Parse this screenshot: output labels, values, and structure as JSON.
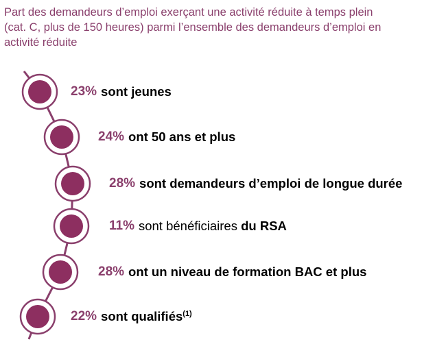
{
  "title": {
    "line1": "Part des demandeurs d’emploi exerçant une activité réduite à temps plein",
    "line2": "(cat. C, plus de 150 heures) parmi l’ensemble des demandeurs d’emploi en",
    "line3": "activité réduite"
  },
  "colors": {
    "accent": "#8a3f6c",
    "disc": "#8d2f60",
    "ring": "#ffffff",
    "line": "#8a3f6c"
  },
  "items": [
    {
      "pct": "23%",
      "text": "sont jeunes",
      "bold": true
    },
    {
      "pct": "24%",
      "text": "ont 50 ans et plus",
      "bold": true
    },
    {
      "pct": "28%",
      "text": "sont demandeurs d’emploi de longue durée",
      "bold": true
    },
    {
      "pct": "11%",
      "text_plain": "sont bénéficiaires",
      "text_bold": "du RSA"
    },
    {
      "pct": "28%",
      "text": "ont un niveau de formation BAC et plus",
      "bold": true
    },
    {
      "pct": "22%",
      "text": "sont qualifiés",
      "sup": "(1)",
      "bold": true
    }
  ]
}
